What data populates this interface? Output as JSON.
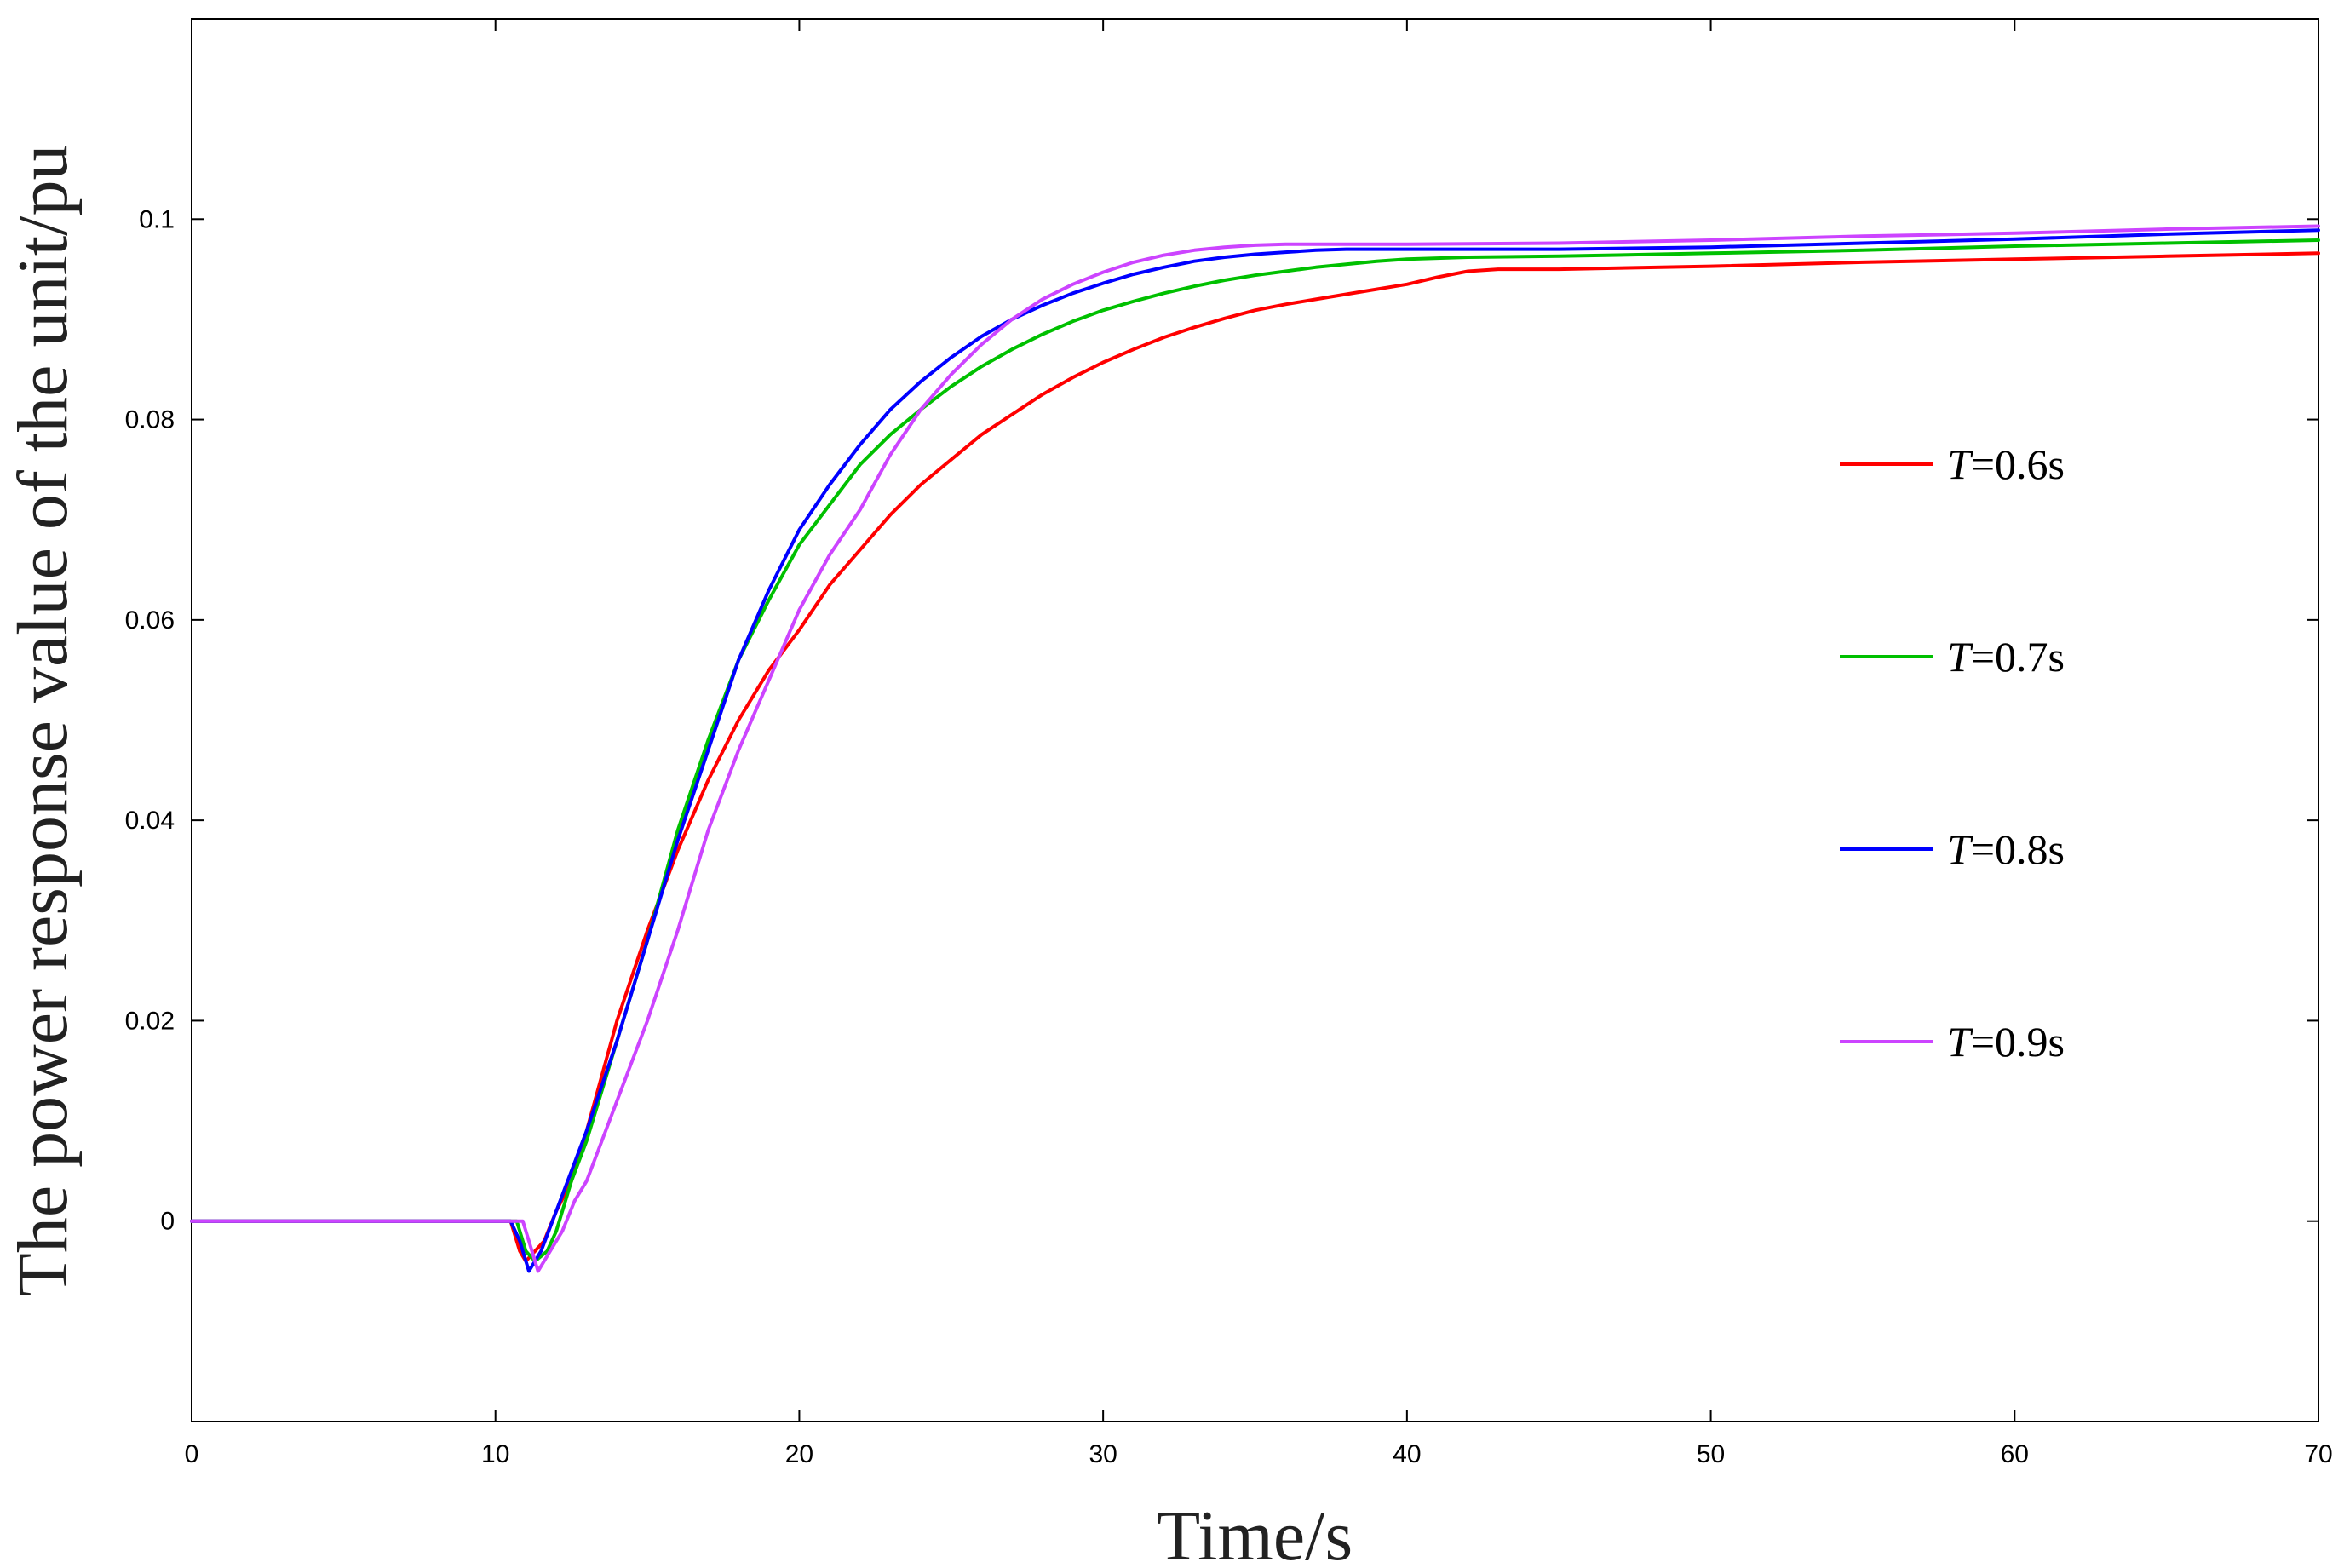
{
  "chart_data": {
    "type": "line",
    "title": "",
    "xlabel": "Time/s",
    "ylabel": "The power response value of the unit/pu",
    "xlim": [
      0,
      70
    ],
    "ylim": [
      -0.02,
      0.12
    ],
    "xticks": [
      0,
      10,
      20,
      30,
      40,
      50,
      60,
      70
    ],
    "xtick_labels": [
      "0",
      "10",
      "20",
      "30",
      "40",
      "50",
      "60",
      "70"
    ],
    "yticks": [
      0,
      0.02,
      0.04,
      0.06,
      0.08,
      0.1
    ],
    "ytick_labels": [
      "0",
      "0.02",
      "0.04",
      "0.06",
      "0.08",
      "0.1"
    ],
    "grid": false,
    "legend_position": "right",
    "series": [
      {
        "name": "T=0.6s",
        "legend_italic": "T",
        "legend_rest": "=0.6s",
        "color": "#ff0000",
        "x": [
          0,
          10,
          10.5,
          10.8,
          11.0,
          11.3,
          11.6,
          12.0,
          12.5,
          13,
          14,
          15,
          16,
          17,
          18,
          19,
          20,
          21,
          22,
          23,
          24,
          25,
          26,
          27,
          28,
          29,
          30,
          31,
          32,
          33,
          34,
          35,
          36,
          37,
          38,
          39,
          40,
          41,
          42,
          43,
          45,
          50,
          55,
          60,
          65,
          70
        ],
        "y": [
          0,
          0,
          0,
          -0.003,
          -0.004,
          -0.003,
          -0.002,
          0.001,
          0.004,
          0.009,
          0.02,
          0.029,
          0.037,
          0.044,
          0.05,
          0.055,
          0.059,
          0.0635,
          0.067,
          0.0705,
          0.0735,
          0.076,
          0.0785,
          0.0805,
          0.0825,
          0.0842,
          0.0857,
          0.087,
          0.0882,
          0.0892,
          0.0901,
          0.0909,
          0.0915,
          0.092,
          0.0925,
          0.093,
          0.0935,
          0.0942,
          0.0948,
          0.095,
          0.095,
          0.0953,
          0.0957,
          0.096,
          0.0963,
          0.0966
        ]
      },
      {
        "name": "T=0.7s",
        "legend_italic": "T",
        "legend_rest": "=0.7s",
        "color": "#00c000",
        "x": [
          0,
          10.7,
          11.0,
          11.3,
          11.7,
          12.0,
          12.5,
          13,
          14,
          15,
          16,
          17,
          18,
          19,
          20,
          21,
          22,
          23,
          24,
          25,
          26,
          27,
          28,
          29,
          30,
          31,
          32,
          33,
          34,
          35,
          36,
          37,
          38,
          39,
          40,
          42,
          45,
          50,
          55,
          60,
          65,
          70
        ],
        "y": [
          0,
          0,
          -0.003,
          -0.004,
          -0.003,
          -0.001,
          0.004,
          0.008,
          0.018,
          0.028,
          0.039,
          0.048,
          0.056,
          0.062,
          0.0675,
          0.0715,
          0.0755,
          0.0785,
          0.081,
          0.0833,
          0.0853,
          0.087,
          0.0885,
          0.0898,
          0.0909,
          0.0918,
          0.0926,
          0.0933,
          0.0939,
          0.0944,
          0.0948,
          0.0952,
          0.0955,
          0.0958,
          0.096,
          0.0962,
          0.0963,
          0.0966,
          0.0969,
          0.0973,
          0.0976,
          0.0979
        ]
      },
      {
        "name": "T=0.8s",
        "legend_italic": "T",
        "legend_rest": "=0.8s",
        "color": "#0000ff",
        "x": [
          0,
          10.5,
          10.8,
          11.1,
          11.5,
          12.0,
          12.5,
          13,
          14,
          15,
          16,
          17,
          18,
          19,
          20,
          21,
          22,
          23,
          24,
          25,
          26,
          27,
          28,
          29,
          30,
          31,
          32,
          33,
          34,
          35,
          36,
          37,
          38,
          39,
          40,
          45,
          50,
          55,
          60,
          65,
          70
        ],
        "y": [
          0,
          0,
          -0.002,
          -0.005,
          -0.003,
          0.001,
          0.005,
          0.009,
          0.018,
          0.028,
          0.038,
          0.047,
          0.056,
          0.063,
          0.069,
          0.0735,
          0.0775,
          0.081,
          0.0838,
          0.0862,
          0.0883,
          0.09,
          0.0914,
          0.0926,
          0.0936,
          0.0945,
          0.0952,
          0.0958,
          0.0962,
          0.0965,
          0.0967,
          0.0969,
          0.097,
          0.097,
          0.097,
          0.097,
          0.0972,
          0.0976,
          0.098,
          0.0985,
          0.0989
        ]
      },
      {
        "name": "T=0.9s",
        "legend_italic": "T",
        "legend_rest": "=0.9s",
        "color": "#cc44ff",
        "x": [
          0,
          10.9,
          11.1,
          11.4,
          11.8,
          12.2,
          12.6,
          13,
          13.5,
          14,
          15,
          16,
          17,
          18,
          19,
          20,
          21,
          22,
          23,
          24,
          25,
          26,
          27,
          28,
          29,
          30,
          31,
          32,
          33,
          34,
          35,
          36,
          37,
          38,
          40,
          45,
          50,
          55,
          60,
          65,
          70
        ],
        "y": [
          0,
          0,
          -0.002,
          -0.005,
          -0.003,
          -0.001,
          0.002,
          0.004,
          0.008,
          0.012,
          0.02,
          0.029,
          0.039,
          0.047,
          0.054,
          0.061,
          0.0665,
          0.071,
          0.0765,
          0.081,
          0.0845,
          0.0875,
          0.09,
          0.092,
          0.0935,
          0.0947,
          0.0957,
          0.0964,
          0.0969,
          0.0972,
          0.0974,
          0.0975,
          0.0975,
          0.0975,
          0.0975,
          0.0976,
          0.0979,
          0.0983,
          0.0986,
          0.099,
          0.0993
        ]
      }
    ]
  }
}
